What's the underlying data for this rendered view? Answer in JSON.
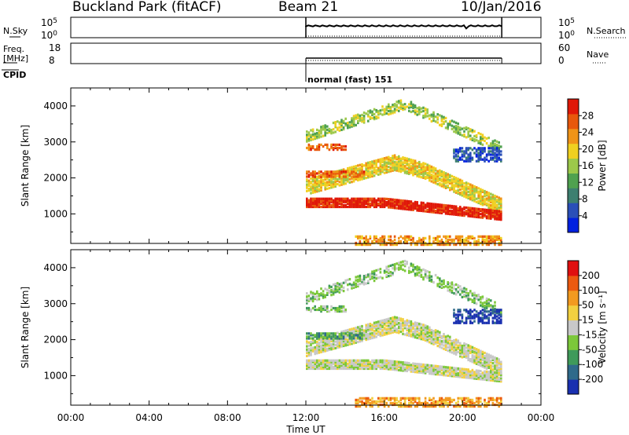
{
  "header": {
    "site": "Buckland Park (fitACF)",
    "beam": "Beam 21",
    "date": "10/Jan/2016"
  },
  "top_panels": {
    "nsky_label": "N.Sky",
    "nsky_ticks": [
      "10^5",
      "10^0"
    ],
    "nsky_right_ticks": [
      "10^5",
      "10^0"
    ],
    "nsearch_label": "N.Search",
    "freq_label": "Freq.",
    "freq_unit": "[MHz]",
    "freq_ticks": [
      "18",
      "8"
    ],
    "nave_ticks": [
      "60",
      "0"
    ],
    "nave_label": "Nave",
    "cpid_label": "CPID",
    "cpid_value": "normal (fast) 151"
  },
  "chart_data": [
    {
      "type": "heatmap",
      "name": "power",
      "ylabel": "Slant Range [km]",
      "yticks": [
        "4000",
        "3000",
        "2000",
        "1000"
      ],
      "ylim": [
        180,
        4500
      ],
      "xlim": [
        0,
        24
      ],
      "colorbar_label": "Power [dB]",
      "colorbar_ticks": [
        "28",
        "24",
        "20",
        "16",
        "12",
        "8",
        "4"
      ],
      "colors": [
        "#0020e0",
        "#2a4fb8",
        "#3d7f70",
        "#4fa14f",
        "#9cc84a",
        "#f0d020",
        "#f09418",
        "#e8580c",
        "#e01808"
      ],
      "data_window_hours": [
        12,
        22
      ]
    },
    {
      "type": "heatmap",
      "name": "velocity",
      "ylabel": "Slant Range [km]",
      "yticks": [
        "4000",
        "3000",
        "2000",
        "1000"
      ],
      "ylim": [
        180,
        4500
      ],
      "xlim": [
        0,
        24
      ],
      "colorbar_label": "Velocity [m s⁻¹]",
      "colorbar_ticks": [
        "200",
        "100",
        "50",
        "15",
        "-15",
        "-50",
        "-100",
        "-200"
      ],
      "colors": [
        "#1a30b0",
        "#2f6a8a",
        "#3f9a5a",
        "#7cc83a",
        "#c8c8c8",
        "#f2d040",
        "#f29a20",
        "#ec5a10",
        "#e01010"
      ],
      "data_window_hours": [
        12,
        22
      ]
    }
  ],
  "xaxis": {
    "ticks": [
      "00:00",
      "04:00",
      "08:00",
      "12:00",
      "16:00",
      "20:00",
      "00:00"
    ],
    "label": "Time UT"
  }
}
